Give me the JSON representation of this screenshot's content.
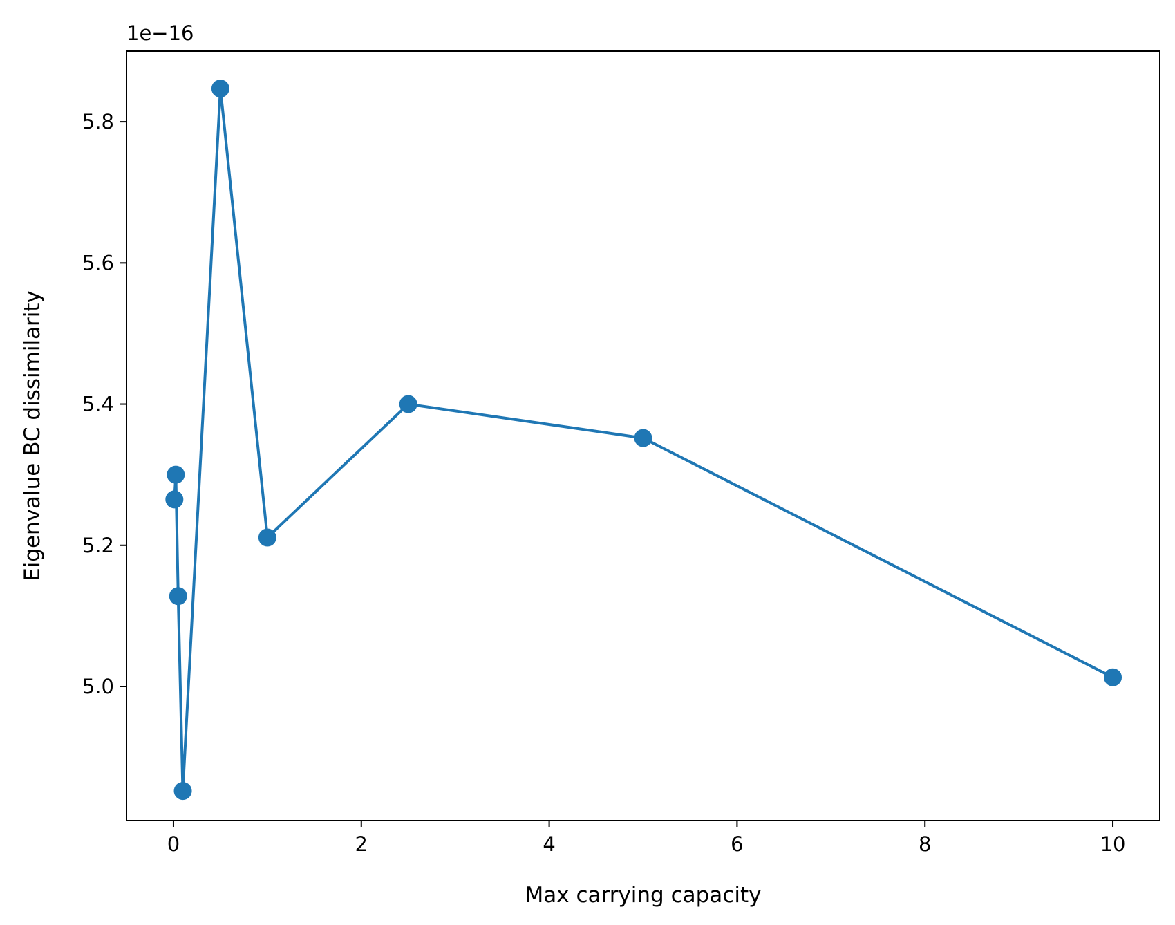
{
  "chart_data": {
    "type": "line",
    "title": "",
    "xlabel": "Max carrying capacity",
    "ylabel": "Eigenvalue BC dissimilarity",
    "y_offset_label": "1e−16",
    "xlim": [
      -0.5,
      10.5
    ],
    "ylim": [
      4.81,
      5.9
    ],
    "x_ticks": [
      0,
      2,
      4,
      6,
      8,
      10
    ],
    "x_tick_labels": [
      "0",
      "2",
      "4",
      "6",
      "8",
      "10"
    ],
    "y_ticks": [
      5.0,
      5.2,
      5.4,
      5.6,
      5.8
    ],
    "y_tick_labels": [
      "5.0",
      "5.2",
      "5.4",
      "5.6",
      "5.8"
    ],
    "grid": false,
    "legend": "none",
    "marker": "circle",
    "color": "#1f77b4",
    "series": [
      {
        "x": [
          0.01,
          0.025,
          0.05,
          0.1,
          0.5,
          1.0,
          2.5,
          5.0,
          10.0
        ],
        "y": [
          5.265,
          5.3,
          5.128,
          4.852,
          5.847,
          5.211,
          5.4,
          5.352,
          5.013
        ]
      }
    ]
  }
}
